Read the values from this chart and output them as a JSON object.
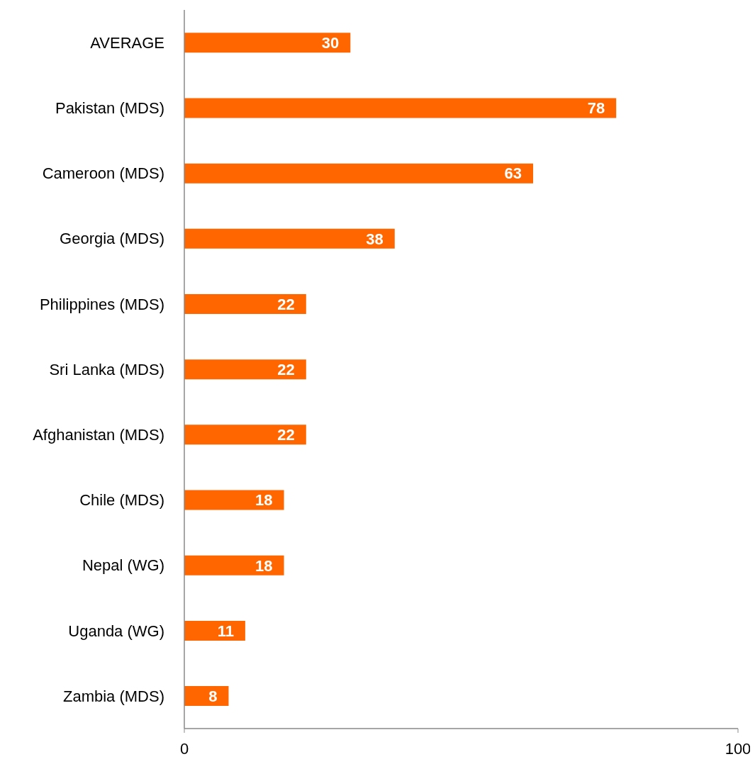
{
  "chart_data": {
    "type": "bar",
    "orientation": "horizontal",
    "categories": [
      "AVERAGE",
      "Pakistan (MDS)",
      "Cameroon (MDS)",
      "Georgia (MDS)",
      "Philippines (MDS)",
      "Sri Lanka (MDS)",
      "Afghanistan (MDS)",
      "Chile (MDS)",
      "Nepal (WG)",
      "Uganda (WG)",
      "Zambia (MDS)"
    ],
    "values": [
      30,
      78,
      63,
      38,
      22,
      22,
      22,
      18,
      18,
      11,
      8
    ],
    "color": "#ff6600",
    "xlim": [
      0,
      100
    ],
    "xticks": [
      0,
      100
    ],
    "data_labels": true
  }
}
